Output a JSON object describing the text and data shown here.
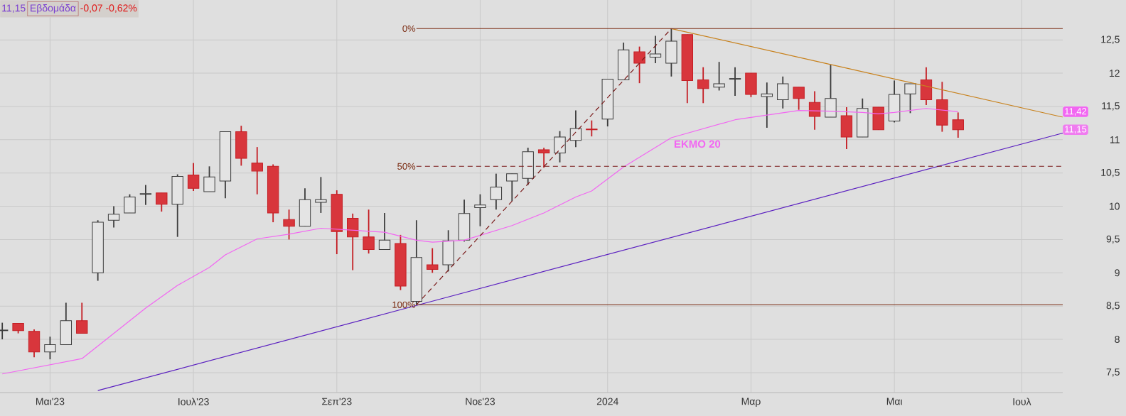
{
  "chart_data": {
    "type": "candlestick",
    "title": "11,15",
    "subtitle": "Εβδομάδα",
    "annotations": [
      "-0,07 -0,62%",
      "11,42",
      {
        "text": "11,15",
        "x": "2024-07-19",
        "y": 11.15
      },
      {
        "text": "0%",
        "x": "2023-10-09",
        "y": 12.67
      },
      {
        "text": "50%",
        "x": "2023-10-09",
        "y": 10.6
      },
      {
        "text": "100%",
        "x": "2023-10-09",
        "y": 8.52
      }
    ],
    "x": [
      "2023-04-10",
      "2023-04-17",
      "2023-04-24",
      "2023-05-01",
      "2023-05-08",
      "2023-05-15",
      "2023-05-22",
      "2023-05-29",
      "2023-06-05",
      "2023-06-12",
      "2023-06-19",
      "2023-06-26",
      "2023-07-03",
      "2023-07-10",
      "2023-07-17",
      "2023-07-24",
      "2023-07-31",
      "2023-08-07",
      "2023-08-14",
      "2023-08-21",
      "2023-08-28",
      "2023-09-04",
      "2023-09-11",
      "2023-09-18",
      "2023-09-25",
      "2023-10-02",
      "2023-10-09",
      "2023-10-16",
      "2023-10-23",
      "2023-10-30",
      "2023-11-06",
      "2023-11-13",
      "2023-11-20",
      "2023-11-27",
      "2023-12-04",
      "2023-12-11",
      "2023-12-18",
      "2023-12-25",
      "2024-01-01",
      "2024-01-08",
      "2024-01-15",
      "2024-01-22",
      "2024-01-29",
      "2024-02-05",
      "2024-02-12",
      "2024-02-19",
      "2024-02-26",
      "2024-03-04",
      "2024-03-11",
      "2024-03-18",
      "2024-03-25",
      "2024-04-01",
      "2024-04-08",
      "2024-04-15",
      "2024-04-22",
      "2024-04-29",
      "2024-05-06",
      "2024-05-13",
      "2024-05-20",
      "2024-05-27",
      "2024-06-03"
    ],
    "ohlc": [
      [
        8.13,
        8.25,
        8.0,
        8.14
      ],
      [
        8.24,
        8.24,
        8.09,
        8.13
      ],
      [
        8.12,
        8.15,
        7.73,
        7.81
      ],
      [
        7.81,
        8.04,
        7.7,
        7.92
      ],
      [
        7.92,
        8.55,
        7.92,
        8.28
      ],
      [
        8.28,
        8.55,
        8.09,
        8.09
      ],
      [
        9.0,
        9.79,
        8.88,
        9.76
      ],
      [
        9.79,
        10.0,
        9.68,
        9.88
      ],
      [
        9.9,
        10.18,
        9.9,
        10.14
      ],
      [
        10.18,
        10.32,
        10.02,
        10.19
      ],
      [
        10.2,
        10.2,
        9.92,
        10.03
      ],
      [
        10.03,
        10.48,
        9.54,
        10.45
      ],
      [
        10.47,
        10.65,
        10.23,
        10.27
      ],
      [
        10.22,
        10.6,
        10.22,
        10.44
      ],
      [
        10.38,
        11.12,
        10.12,
        11.12
      ],
      [
        11.12,
        11.21,
        10.61,
        10.72
      ],
      [
        10.65,
        10.89,
        10.18,
        10.53
      ],
      [
        10.6,
        10.63,
        9.76,
        9.9
      ],
      [
        9.8,
        9.95,
        9.5,
        9.7
      ],
      [
        9.7,
        10.27,
        9.7,
        10.1
      ],
      [
        10.06,
        10.44,
        9.9,
        10.1
      ],
      [
        10.18,
        10.24,
        9.28,
        9.62
      ],
      [
        9.82,
        9.89,
        9.04,
        9.54
      ],
      [
        9.54,
        9.95,
        9.29,
        9.35
      ],
      [
        9.35,
        9.9,
        9.35,
        9.49
      ],
      [
        9.44,
        9.57,
        8.74,
        8.8
      ],
      [
        8.57,
        9.79,
        8.52,
        9.23
      ],
      [
        9.12,
        9.37,
        9.0,
        9.05
      ],
      [
        9.12,
        9.64,
        9.02,
        9.48
      ],
      [
        9.49,
        10.1,
        9.47,
        9.89
      ],
      [
        9.98,
        10.18,
        9.7,
        10.02
      ],
      [
        10.1,
        10.49,
        9.95,
        10.29
      ],
      [
        10.38,
        10.49,
        10.08,
        10.49
      ],
      [
        10.42,
        10.88,
        10.32,
        10.82
      ],
      [
        10.85,
        10.88,
        10.58,
        10.8
      ],
      [
        10.8,
        11.13,
        10.66,
        11.04
      ],
      [
        10.99,
        11.44,
        10.89,
        11.17
      ],
      [
        11.16,
        11.29,
        11.05,
        11.15
      ],
      [
        11.31,
        11.91,
        11.2,
        11.91
      ],
      [
        11.9,
        12.46,
        11.9,
        12.35
      ],
      [
        12.32,
        12.4,
        11.85,
        12.15
      ],
      [
        12.24,
        12.56,
        12.15,
        12.29
      ],
      [
        12.15,
        12.67,
        11.95,
        12.48
      ],
      [
        12.58,
        12.58,
        11.55,
        11.89
      ],
      [
        11.9,
        12.09,
        11.55,
        11.77
      ],
      [
        11.79,
        12.17,
        11.74,
        11.84
      ],
      [
        11.91,
        12.09,
        11.66,
        11.92
      ],
      [
        12.0,
        12.0,
        11.64,
        11.68
      ],
      [
        11.65,
        11.86,
        11.18,
        11.69
      ],
      [
        11.6,
        11.95,
        11.47,
        11.84
      ],
      [
        11.79,
        11.79,
        11.45,
        11.62
      ],
      [
        11.56,
        11.73,
        11.15,
        11.35
      ],
      [
        11.34,
        12.13,
        11.34,
        11.62
      ],
      [
        11.36,
        11.49,
        10.86,
        11.04
      ],
      [
        11.04,
        11.62,
        11.04,
        11.47
      ],
      [
        11.49,
        11.49,
        11.15,
        11.15
      ],
      [
        11.28,
        11.89,
        11.26,
        11.68
      ],
      [
        11.69,
        11.84,
        11.4,
        11.84
      ],
      [
        11.9,
        12.09,
        11.52,
        11.6
      ],
      [
        11.6,
        11.87,
        11.12,
        11.22
      ],
      [
        11.3,
        11.41,
        11.03,
        11.15
      ]
    ],
    "series": [
      {
        "name": "ΕΚΜΟ 20",
        "type": "line",
        "color": "#f266f2",
        "x": [
          "2023-04-10",
          "2023-05-15",
          "2023-06-12",
          "2023-06-26",
          "2023-07-10",
          "2023-07-17",
          "2023-07-31",
          "2023-08-14",
          "2023-08-28",
          "2023-09-25",
          "2023-10-09",
          "2023-10-16",
          "2023-10-30",
          "2023-11-20",
          "2023-12-04",
          "2023-12-18",
          "2023-12-25",
          "2024-01-08",
          "2024-01-29",
          "2024-02-26",
          "2024-03-25",
          "2024-04-08",
          "2024-04-22",
          "2024-04-29",
          "2024-05-06",
          "2024-05-20",
          "2024-06-03"
        ],
        "values": [
          7.48,
          7.71,
          8.47,
          8.81,
          9.08,
          9.27,
          9.51,
          9.58,
          9.67,
          9.61,
          9.49,
          9.46,
          9.49,
          9.71,
          9.9,
          10.14,
          10.23,
          10.59,
          11.03,
          11.3,
          11.44,
          11.43,
          11.41,
          11.39,
          11.41,
          11.47,
          11.42
        ]
      },
      {
        "type": "line",
        "color": "#5a1fc0",
        "x": [
          "2023-05-22",
          "2023-10-09",
          "2024-07-19"
        ],
        "values": [
          7.23,
          8.51,
          11.1
        ]
      },
      {
        "type": "line",
        "color": "#c8821e",
        "x": [
          "2024-01-29",
          "2024-04-08",
          "2024-07-19"
        ],
        "values": [
          12.67,
          12.13,
          11.34
        ]
      },
      {
        "type": "line",
        "color": "#7a1a1a",
        "line_style": "dashed",
        "x": [
          "2023-10-09",
          "2024-01-29"
        ],
        "values": [
          8.52,
          12.67
        ]
      }
    ],
    "ref_lines": [
      {
        "axis": "y",
        "value": 12.67,
        "color": "#7a2a10"
      },
      {
        "axis": "y",
        "value": 10.6,
        "color": "#7a1a1a",
        "line_style": "dashed"
      },
      {
        "axis": "y",
        "value": 8.52,
        "color": "#7a2a10"
      }
    ],
    "xlim": [
      "2023-04-09",
      "2024-07-19"
    ],
    "ylim": [
      7.2,
      13.1
    ],
    "xticks": [
      {
        "value": "2023-05-01",
        "label": "Μαι'23"
      },
      {
        "value": "2023-07-03",
        "label": "Ιουλ'23"
      },
      {
        "value": "2023-09-04",
        "label": "Σεπ'23"
      },
      {
        "value": "2023-11-06",
        "label": "Νοε'23"
      },
      {
        "value": "2024-01-01",
        "label": "2024"
      },
      {
        "value": "2024-03-04",
        "label": "Μαρ"
      },
      {
        "value": "2024-05-06",
        "label": "Μαι"
      },
      {
        "value": "2024-07-01",
        "label": "Ιουλ"
      }
    ],
    "yticks": [
      {
        "value": 7.5,
        "label": "7,5"
      },
      8,
      {
        "value": 8.5,
        "label": "8,5"
      },
      9,
      {
        "value": 9.5,
        "label": "9,5"
      },
      10,
      {
        "value": 10.5,
        "label": "10,5"
      },
      11,
      {
        "value": 11.5,
        "label": "11,5"
      },
      12,
      {
        "value": 12.5,
        "label": "12,5"
      }
    ],
    "grid": true
  }
}
